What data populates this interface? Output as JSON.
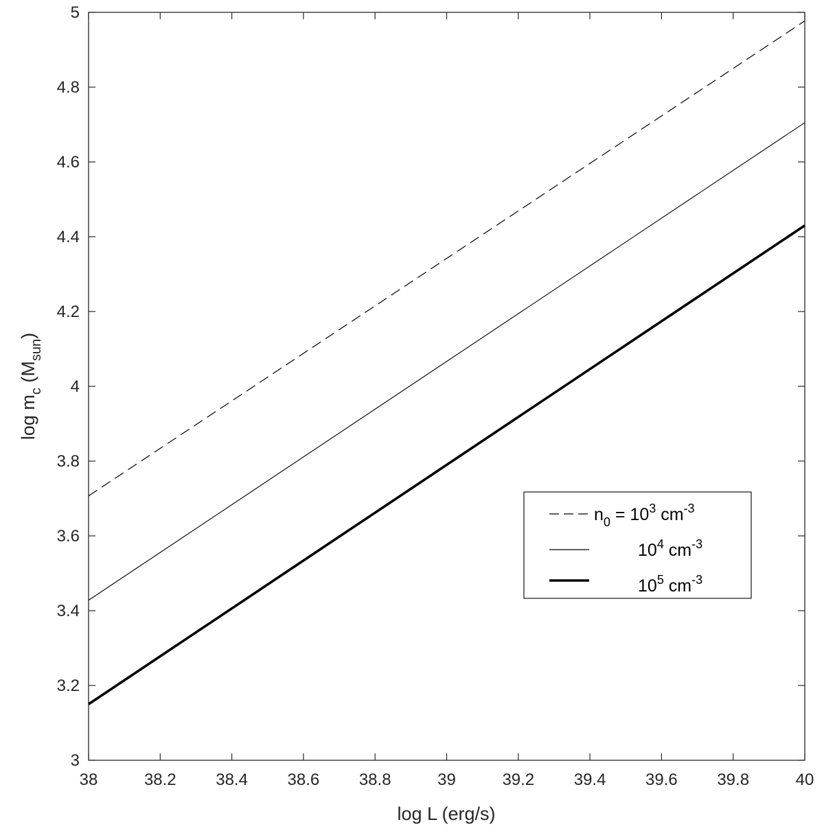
{
  "chart_data": {
    "type": "line",
    "title": "",
    "xlabel": "log L  (erg/s)",
    "ylabel": {
      "prefix": "log m",
      "sub1": "c",
      "mid": " (M",
      "sub2": "sun",
      "suffix": ")"
    },
    "xlim": [
      38,
      40
    ],
    "ylim": [
      3,
      5
    ],
    "xticks": [
      "38",
      "38.2",
      "38.4",
      "38.6",
      "38.8",
      "39",
      "39.2",
      "39.4",
      "39.6",
      "39.8",
      "40"
    ],
    "yticks": [
      "3",
      "3.2",
      "3.4",
      "3.6",
      "3.8",
      "4",
      "4.2",
      "4.4",
      "4.6",
      "4.8",
      "5"
    ],
    "grid": false,
    "legend_position": "center-right",
    "series": [
      {
        "x": [
          38,
          40
        ],
        "y": [
          3.707,
          4.977
        ],
        "style": "dashed",
        "color": "#000000",
        "legend": {
          "pre": "n",
          "sub": "0",
          "eq": " = 10",
          "sup": "3",
          "unit": " cm",
          "unitsup": "-3"
        }
      },
      {
        "x": [
          38,
          40
        ],
        "y": [
          3.428,
          4.705
        ],
        "style": "thin",
        "color": "#000000",
        "legend": {
          "pre": "",
          "sub": "",
          "eq": "10",
          "sup": "4",
          "unit": " cm",
          "unitsup": "-3"
        }
      },
      {
        "x": [
          38,
          40
        ],
        "y": [
          3.15,
          4.43
        ],
        "style": "thick",
        "color": "#000000",
        "legend": {
          "pre": "",
          "sub": "",
          "eq": "10",
          "sup": "5",
          "unit": " cm",
          "unitsup": "-3"
        }
      }
    ]
  }
}
